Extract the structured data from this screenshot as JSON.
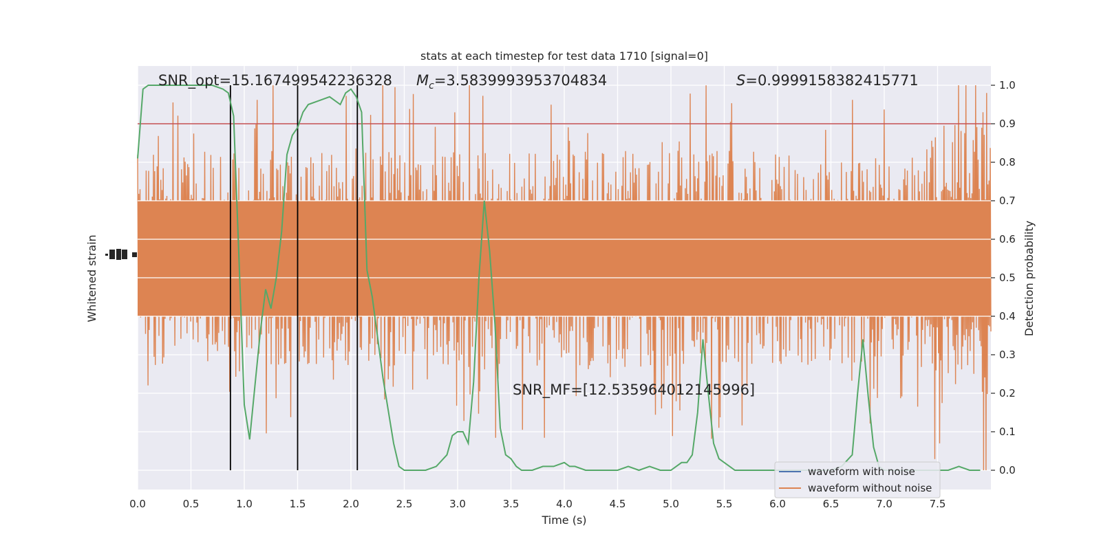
{
  "chart_data": {
    "type": "line",
    "title": "stats at each timestep for test data 1710 [signal=0]",
    "xlabel": "Time (s)",
    "ylabel_left": "Whitened strain",
    "ylabel_right": "Detection probability",
    "xlim": [
      0.0,
      8.0
    ],
    "ylim_right": [
      -0.05,
      1.05
    ],
    "grid": true,
    "x_ticks": [
      "0.0",
      "0.5",
      "1.0",
      "1.5",
      "2.0",
      "2.5",
      "3.0",
      "3.5",
      "4.0",
      "4.5",
      "5.0",
      "5.5",
      "6.0",
      "6.5",
      "7.0",
      "7.5"
    ],
    "y_ticks_right": [
      "0.0",
      "0.1",
      "0.2",
      "0.3",
      "0.4",
      "0.5",
      "0.6",
      "0.7",
      "0.8",
      "0.9",
      "1.0"
    ],
    "annotations": {
      "snr_opt": "SNR_opt=15.167499542236328",
      "mc_symbol": "M",
      "mc_subscript": "c",
      "mc_value": "=3.5839993953704834",
      "s_symbol": "S",
      "s_value": "=0.9999158382415771",
      "snr_mf": "SNR_MF=[12.535964012145996]"
    },
    "threshold": 0.9,
    "vertical_lines": [
      0.87,
      1.5,
      2.06
    ],
    "series": [
      {
        "name": "waveform with noise",
        "color": "#4c72b0",
        "visible_in_plot": false
      },
      {
        "name": "waveform without noise",
        "color": "#dd8452",
        "band_center": 0.55,
        "band_core_halfwidth": 0.15,
        "spike_range": [
          0.0,
          1.0
        ]
      },
      {
        "name": "detection probability",
        "color": "#55a868",
        "x": [
          0.0,
          0.05,
          0.1,
          0.2,
          0.3,
          0.4,
          0.5,
          0.6,
          0.7,
          0.8,
          0.85,
          0.9,
          0.95,
          1.0,
          1.05,
          1.1,
          1.15,
          1.2,
          1.25,
          1.3,
          1.35,
          1.4,
          1.45,
          1.5,
          1.55,
          1.6,
          1.7,
          1.8,
          1.9,
          1.95,
          2.0,
          2.05,
          2.1,
          2.15,
          2.2,
          2.3,
          2.4,
          2.45,
          2.5,
          2.7,
          2.8,
          2.9,
          2.95,
          3.0,
          3.05,
          3.1,
          3.15,
          3.2,
          3.25,
          3.3,
          3.35,
          3.4,
          3.45,
          3.5,
          3.55,
          3.6,
          3.7,
          3.8,
          3.9,
          4.0,
          4.05,
          4.1,
          4.2,
          4.3,
          4.4,
          4.5,
          4.6,
          4.7,
          4.8,
          4.9,
          5.0,
          5.1,
          5.15,
          5.2,
          5.25,
          5.3,
          5.35,
          5.4,
          5.45,
          5.5,
          5.55,
          5.6,
          5.65,
          5.7,
          5.8,
          6.0,
          6.2,
          6.4,
          6.5,
          6.6,
          6.7,
          6.75,
          6.8,
          6.85,
          6.9,
          6.95,
          7.0,
          7.05,
          7.1,
          7.2,
          7.3,
          7.4,
          7.6,
          7.7,
          7.8,
          7.9
        ],
        "y": [
          0.81,
          0.99,
          1.0,
          1.0,
          1.0,
          1.0,
          1.0,
          1.0,
          1.0,
          0.99,
          0.98,
          0.92,
          0.55,
          0.17,
          0.08,
          0.22,
          0.36,
          0.47,
          0.42,
          0.5,
          0.62,
          0.82,
          0.87,
          0.89,
          0.93,
          0.95,
          0.96,
          0.97,
          0.95,
          0.98,
          0.99,
          0.97,
          0.93,
          0.52,
          0.45,
          0.24,
          0.07,
          0.01,
          0.0,
          0.0,
          0.01,
          0.04,
          0.09,
          0.1,
          0.1,
          0.07,
          0.23,
          0.5,
          0.7,
          0.57,
          0.38,
          0.11,
          0.04,
          0.03,
          0.01,
          0.0,
          0.0,
          0.01,
          0.01,
          0.02,
          0.01,
          0.01,
          0.0,
          0.0,
          0.0,
          0.0,
          0.01,
          0.0,
          0.01,
          0.0,
          0.0,
          0.02,
          0.02,
          0.04,
          0.15,
          0.34,
          0.2,
          0.07,
          0.03,
          0.02,
          0.01,
          0.0,
          0.0,
          0.0,
          0.0,
          0.0,
          0.0,
          0.0,
          0.0,
          0.01,
          0.04,
          0.2,
          0.34,
          0.19,
          0.06,
          0.01,
          0.0,
          0.0,
          0.0,
          0.0,
          0.0,
          0.0,
          0.0,
          0.01,
          0.0,
          0.0
        ]
      }
    ],
    "legend": {
      "placement": "lower-right",
      "entries": [
        "waveform with noise",
        "waveform without noise"
      ]
    },
    "colors": {
      "background": "#eaeaf2",
      "grid": "#ffffff",
      "threshold_line": "#c44e52",
      "vertical_line": "#000000"
    }
  }
}
